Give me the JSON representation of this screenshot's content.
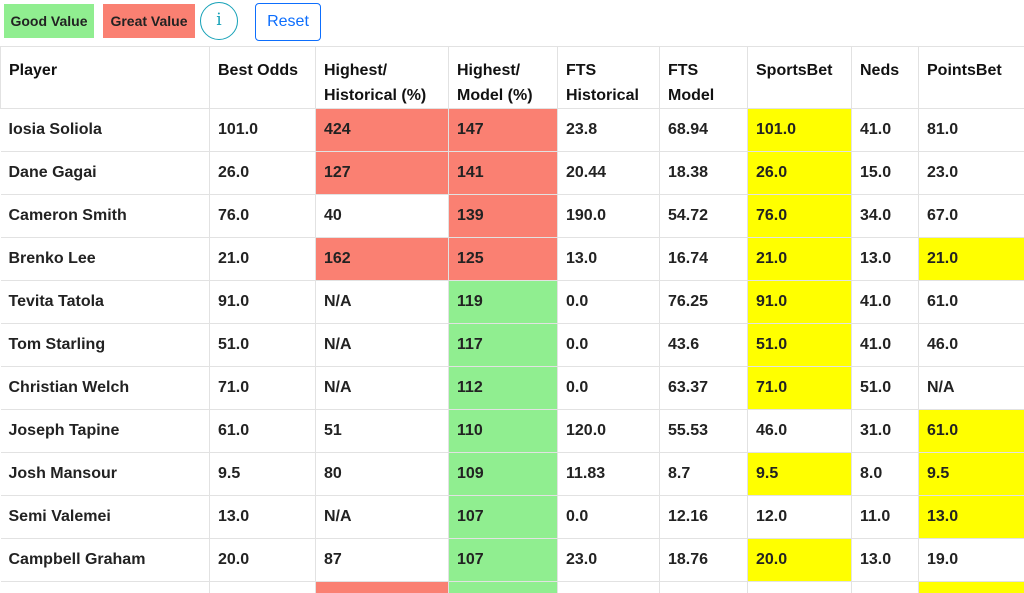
{
  "legend": {
    "good_label": "Good Value",
    "great_label": "Great Value",
    "good_color": "#90ee90",
    "great_color": "#fa8072",
    "highlight_color": "#ffff00"
  },
  "toolbar": {
    "info_label": "i",
    "reset_label": "Reset"
  },
  "table": {
    "headers": [
      [
        "Player"
      ],
      [
        "Best Odds"
      ],
      [
        "Highest/",
        "Historical (%)"
      ],
      [
        "Highest/",
        "Model (%)"
      ],
      [
        "FTS",
        "Historical"
      ],
      [
        "FTS",
        "Model"
      ],
      [
        "SportsBet"
      ],
      [
        "Neds"
      ],
      [
        "PointsBet"
      ]
    ],
    "rows": [
      {
        "player": "Iosia Soliola",
        "best_odds": "101.0",
        "hist_pct": "424",
        "hist_tier": "great",
        "model_pct": "147",
        "model_tier": "great",
        "fts_hist": "23.8",
        "fts_model": "68.94",
        "sportsbet": "101.0",
        "sb_best": true,
        "neds": "41.0",
        "neds_best": false,
        "pointsbet": "81.0",
        "pb_best": false
      },
      {
        "player": "Dane Gagai",
        "best_odds": "26.0",
        "hist_pct": "127",
        "hist_tier": "great",
        "model_pct": "141",
        "model_tier": "great",
        "fts_hist": "20.44",
        "fts_model": "18.38",
        "sportsbet": "26.0",
        "sb_best": true,
        "neds": "15.0",
        "neds_best": false,
        "pointsbet": "23.0",
        "pb_best": false
      },
      {
        "player": "Cameron Smith",
        "best_odds": "76.0",
        "hist_pct": "40",
        "hist_tier": "none",
        "model_pct": "139",
        "model_tier": "great",
        "fts_hist": "190.0",
        "fts_model": "54.72",
        "sportsbet": "76.0",
        "sb_best": true,
        "neds": "34.0",
        "neds_best": false,
        "pointsbet": "67.0",
        "pb_best": false
      },
      {
        "player": "Brenko Lee",
        "best_odds": "21.0",
        "hist_pct": "162",
        "hist_tier": "great",
        "model_pct": "125",
        "model_tier": "great",
        "fts_hist": "13.0",
        "fts_model": "16.74",
        "sportsbet": "21.0",
        "sb_best": true,
        "neds": "13.0",
        "neds_best": false,
        "pointsbet": "21.0",
        "pb_best": true
      },
      {
        "player": "Tevita Tatola",
        "best_odds": "91.0",
        "hist_pct": "N/A",
        "hist_tier": "none",
        "model_pct": "119",
        "model_tier": "good",
        "fts_hist": "0.0",
        "fts_model": "76.25",
        "sportsbet": "91.0",
        "sb_best": true,
        "neds": "41.0",
        "neds_best": false,
        "pointsbet": "61.0",
        "pb_best": false
      },
      {
        "player": "Tom Starling",
        "best_odds": "51.0",
        "hist_pct": "N/A",
        "hist_tier": "none",
        "model_pct": "117",
        "model_tier": "good",
        "fts_hist": "0.0",
        "fts_model": "43.6",
        "sportsbet": "51.0",
        "sb_best": true,
        "neds": "41.0",
        "neds_best": false,
        "pointsbet": "46.0",
        "pb_best": false
      },
      {
        "player": "Christian Welch",
        "best_odds": "71.0",
        "hist_pct": "N/A",
        "hist_tier": "none",
        "model_pct": "112",
        "model_tier": "good",
        "fts_hist": "0.0",
        "fts_model": "63.37",
        "sportsbet": "71.0",
        "sb_best": true,
        "neds": "51.0",
        "neds_best": false,
        "pointsbet": "N/A",
        "pb_best": false
      },
      {
        "player": "Joseph Tapine",
        "best_odds": "61.0",
        "hist_pct": "51",
        "hist_tier": "none",
        "model_pct": "110",
        "model_tier": "good",
        "fts_hist": "120.0",
        "fts_model": "55.53",
        "sportsbet": "46.0",
        "sb_best": false,
        "neds": "31.0",
        "neds_best": false,
        "pointsbet": "61.0",
        "pb_best": true
      },
      {
        "player": "Josh Mansour",
        "best_odds": "9.5",
        "hist_pct": "80",
        "hist_tier": "none",
        "model_pct": "109",
        "model_tier": "good",
        "fts_hist": "11.83",
        "fts_model": "8.7",
        "sportsbet": "9.5",
        "sb_best": true,
        "neds": "8.0",
        "neds_best": false,
        "pointsbet": "9.5",
        "pb_best": true
      },
      {
        "player": "Semi Valemei",
        "best_odds": "13.0",
        "hist_pct": "N/A",
        "hist_tier": "none",
        "model_pct": "107",
        "model_tier": "good",
        "fts_hist": "0.0",
        "fts_model": "12.16",
        "sportsbet": "12.0",
        "sb_best": false,
        "neds": "11.0",
        "neds_best": false,
        "pointsbet": "13.0",
        "pb_best": true
      },
      {
        "player": "Campbell Graham",
        "best_odds": "20.0",
        "hist_pct": "87",
        "hist_tier": "none",
        "model_pct": "107",
        "model_tier": "good",
        "fts_hist": "23.0",
        "fts_model": "18.76",
        "sportsbet": "20.0",
        "sb_best": true,
        "neds": "13.0",
        "neds_best": false,
        "pointsbet": "19.0",
        "pb_best": false
      }
    ],
    "partial_row": {
      "hist_tier": "great",
      "model_tier": "good",
      "pb_best": true
    }
  }
}
